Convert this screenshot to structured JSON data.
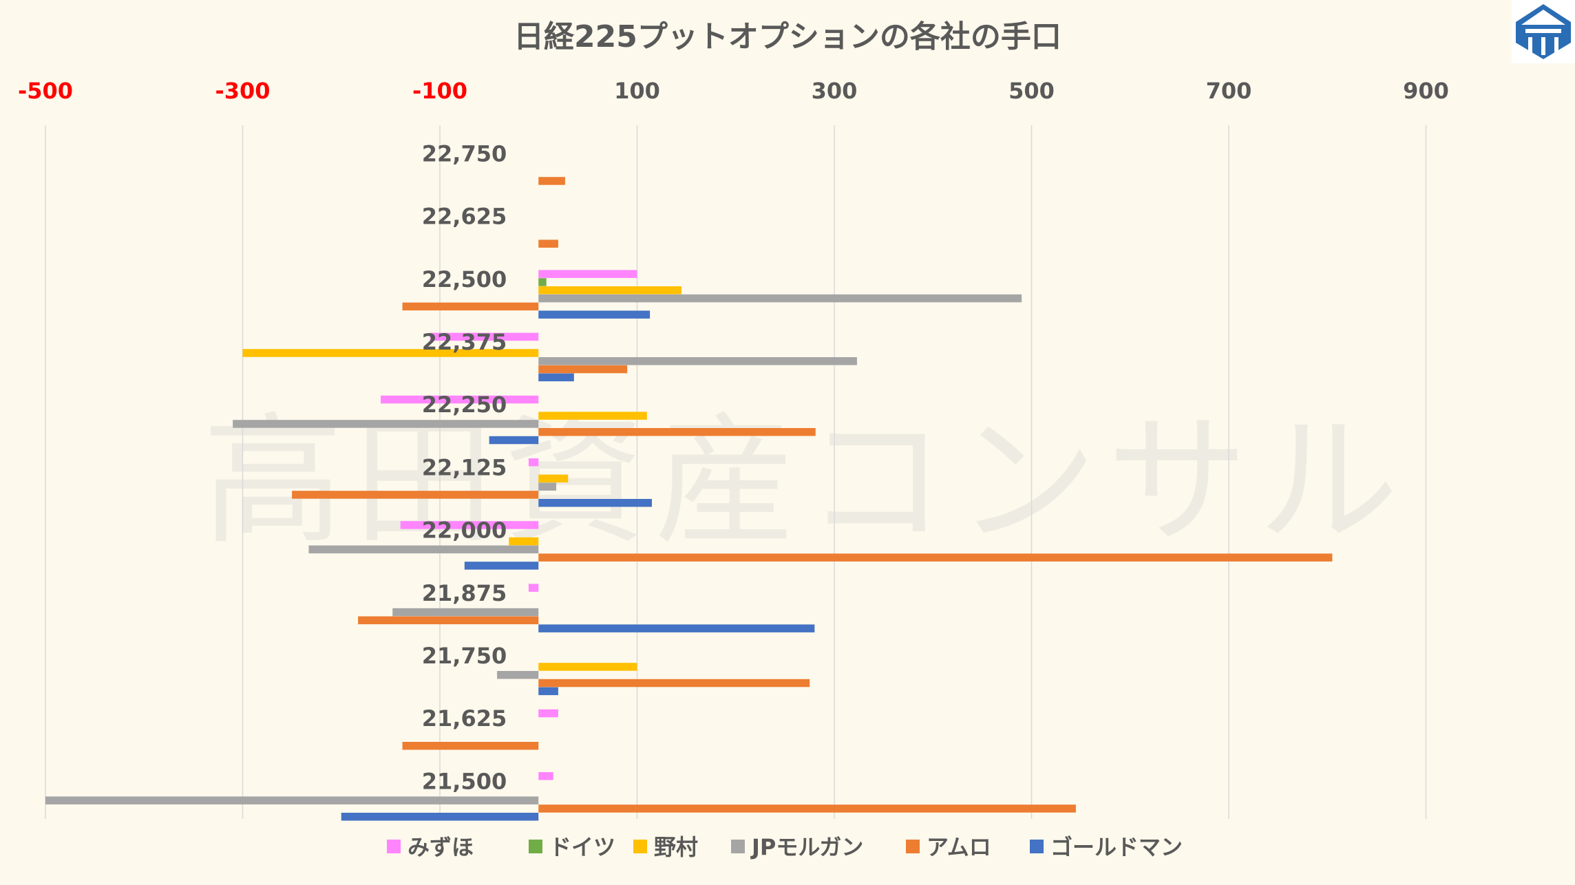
{
  "watermark": "高田資産コンサル",
  "chart_data": {
    "type": "bar",
    "orientation": "horizontal",
    "title": "日経225プットオプションの各社の手口",
    "xlabel": "",
    "ylabel": "",
    "xlim": [
      -500,
      1000
    ],
    "x_ticks": [
      -500,
      -300,
      -100,
      100,
      300,
      500,
      700,
      900
    ],
    "x_tick_labels": [
      "-500",
      "-300",
      "-100",
      "100",
      "300",
      "500",
      "700",
      "900"
    ],
    "negative_tick_color": "#ff0000",
    "positive_tick_color": "#595959",
    "grid": true,
    "legend": "bottom",
    "categories": [
      "22,750",
      "22,625",
      "22,500",
      "22,375",
      "22,250",
      "22,125",
      "22,000",
      "21,875",
      "21,750",
      "21,625",
      "21,500"
    ],
    "series": [
      {
        "name": "みずほ",
        "color": "#ff85ff",
        "values": [
          0,
          0,
          100,
          -110,
          -160,
          -10,
          -140,
          -10,
          0,
          20,
          15
        ]
      },
      {
        "name": "ドイツ",
        "color": "#70ad47",
        "values": [
          0,
          0,
          8,
          0,
          0,
          0,
          0,
          0,
          0,
          0,
          0
        ]
      },
      {
        "name": "野村",
        "color": "#ffc000",
        "values": [
          0,
          0,
          145,
          -300,
          110,
          30,
          -30,
          0,
          100,
          0,
          0
        ]
      },
      {
        "name": "JPモルガン",
        "color": "#a5a5a5",
        "values": [
          0,
          0,
          490,
          323,
          -310,
          18,
          -233,
          -148,
          -42,
          0,
          -500
        ]
      },
      {
        "name": "アムロ",
        "color": "#ed7d31",
        "values": [
          27,
          20,
          -138,
          90,
          281,
          -250,
          805,
          -183,
          275,
          -138,
          545
        ]
      },
      {
        "name": "ゴールドマン",
        "color": "#4472c4",
        "values": [
          0,
          0,
          113,
          36,
          -50,
          115,
          -75,
          280,
          20,
          0,
          -200
        ]
      }
    ]
  }
}
